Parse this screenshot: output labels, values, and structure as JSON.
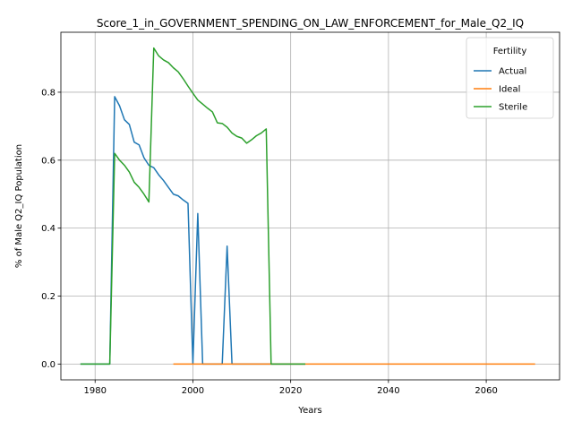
{
  "chart_data": {
    "type": "line",
    "title": "Score_1_in_GOVERNMENT_SPENDING_ON_LAW_ENFORCEMENT_for_Male_Q2_IQ",
    "xlabel": "Years",
    "ylabel": "% of Male Q2_IQ Population",
    "xlim": [
      1973,
      2075
    ],
    "ylim": [
      -0.0465,
      0.9765
    ],
    "xticks": [
      1980,
      2000,
      2020,
      2040,
      2060
    ],
    "yticks": [
      0.0,
      0.2,
      0.4,
      0.6,
      0.8
    ],
    "xtick_labels": [
      "1980",
      "2000",
      "2020",
      "2040",
      "2060"
    ],
    "ytick_labels": [
      "0.0",
      "0.2",
      "0.4",
      "0.6",
      "0.8"
    ],
    "grid": true,
    "legend": {
      "title": "Fertility",
      "placement": "top-right"
    },
    "series": [
      {
        "name": "Actual",
        "color": "#1f77b4",
        "x": [
          1977,
          1983,
          1984,
          1985,
          1986,
          1987,
          1988,
          1989,
          1990,
          1991,
          1992,
          1993,
          1994,
          1995,
          1996,
          1997,
          1998,
          1999,
          2000,
          2001,
          2002,
          2003,
          2004,
          2005,
          2006,
          2007,
          2008,
          2009,
          2010,
          2023
        ],
        "y": [
          0.0,
          0.0,
          0.787,
          0.76,
          0.719,
          0.705,
          0.653,
          0.645,
          0.607,
          0.585,
          0.578,
          0.557,
          0.54,
          0.52,
          0.5,
          0.495,
          0.483,
          0.473,
          0.0,
          0.443,
          0.0,
          0.0,
          0.0,
          0.0,
          0.0,
          0.347,
          0.0,
          0.0,
          0.0,
          0.0
        ]
      },
      {
        "name": "Ideal",
        "color": "#ff7f0e",
        "x": [
          1996,
          2070
        ],
        "y": [
          0.0,
          0.0
        ]
      },
      {
        "name": "Sterile",
        "color": "#2ca02c",
        "x": [
          1977,
          1983,
          1984,
          1985,
          1986,
          1987,
          1988,
          1989,
          1990,
          1991,
          1992,
          1993,
          1994,
          1995,
          1996,
          1997,
          1998,
          1999,
          2000,
          2001,
          2002,
          2003,
          2004,
          2005,
          2006,
          2007,
          2008,
          2009,
          2010,
          2011,
          2012,
          2013,
          2014,
          2015,
          2016,
          2023
        ],
        "y": [
          0.0,
          0.0,
          0.62,
          0.6,
          0.585,
          0.565,
          0.535,
          0.52,
          0.5,
          0.477,
          0.93,
          0.907,
          0.895,
          0.887,
          0.872,
          0.86,
          0.84,
          0.818,
          0.797,
          0.777,
          0.765,
          0.753,
          0.742,
          0.71,
          0.708,
          0.697,
          0.68,
          0.67,
          0.665,
          0.65,
          0.66,
          0.672,
          0.68,
          0.692,
          0.0,
          0.0
        ]
      }
    ]
  }
}
